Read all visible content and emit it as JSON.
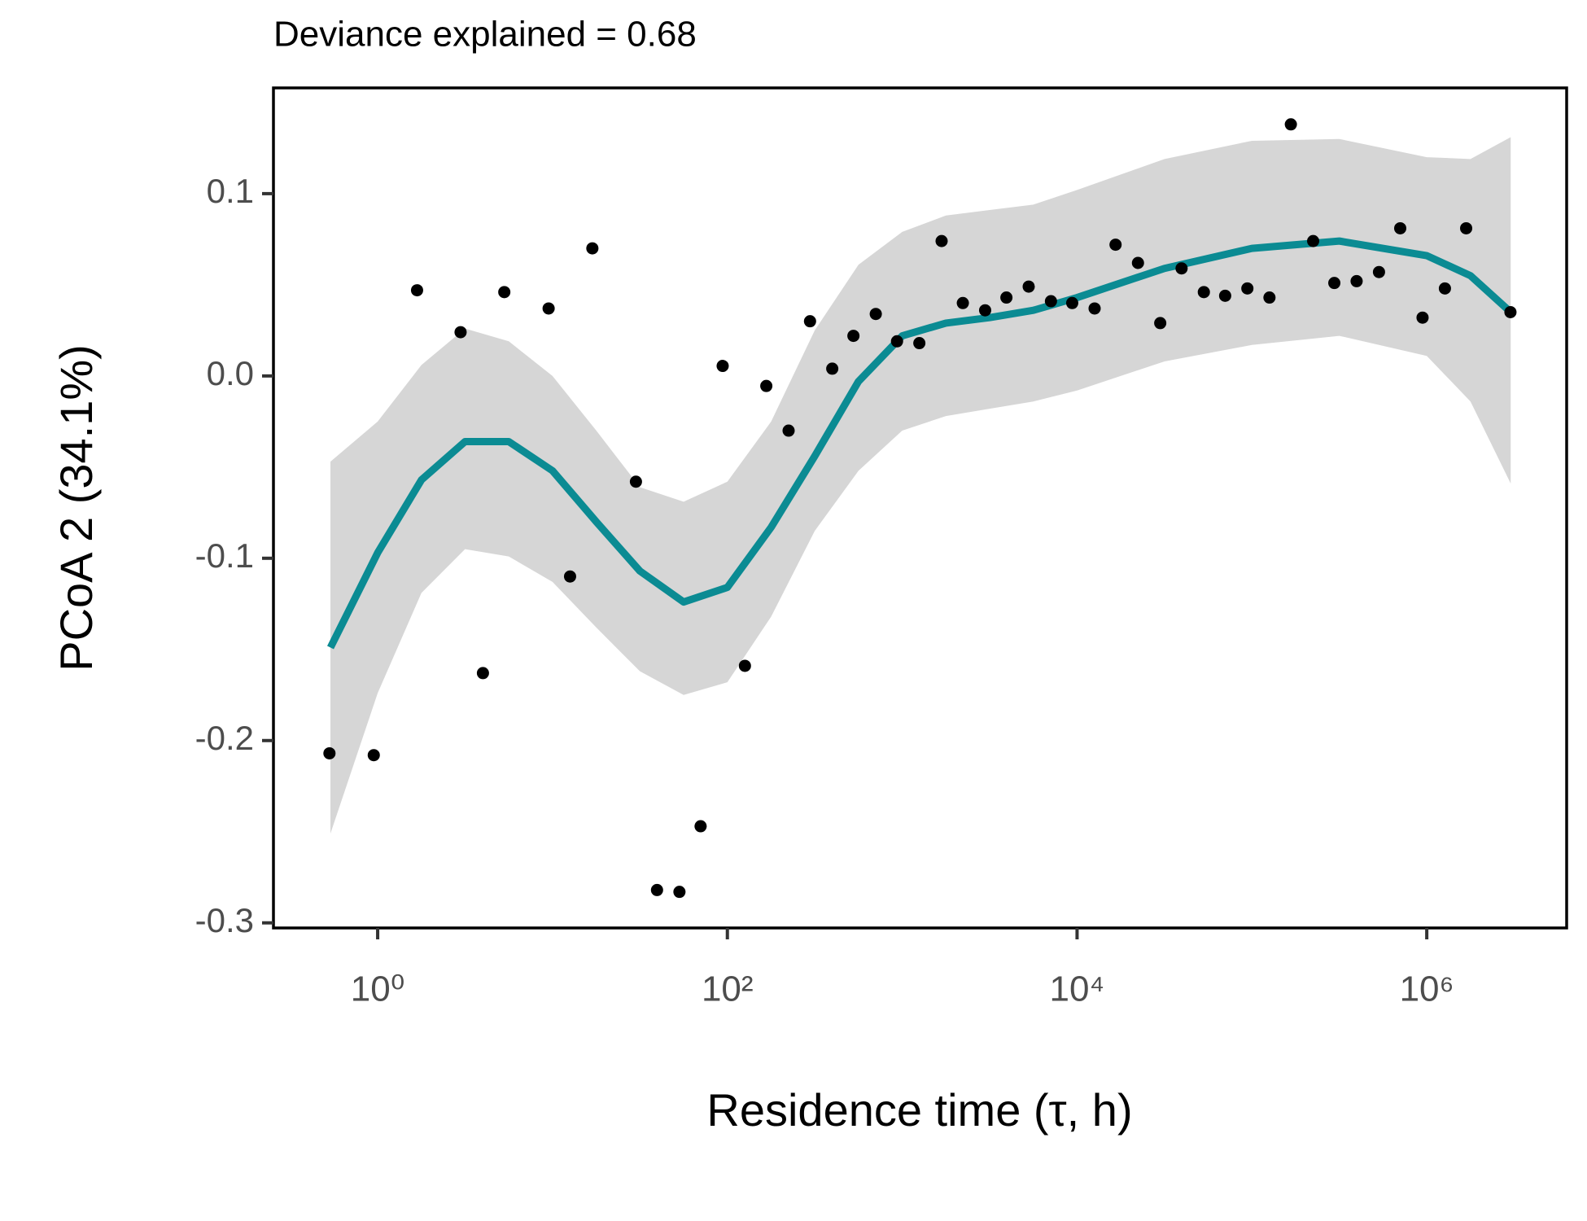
{
  "chart_data": {
    "type": "scatter",
    "title": "Deviance explained = 0.68",
    "x_label": "Residence time (τ, h)",
    "y_label": "PCoA 2 (34.1%)",
    "log_x": true,
    "grid": false,
    "point_color": "#000000",
    "line_color": "#0b8b93",
    "band_color": "#d6d6d6",
    "xlim": [
      0.2535,
      6310000
    ],
    "ylim": [
      -0.3028,
      0.158
    ],
    "xticks": [
      {
        "value": 1,
        "label": "10⁰"
      },
      {
        "value": 100,
        "label": "10²"
      },
      {
        "value": 10000,
        "label": "10⁴"
      },
      {
        "value": 1000000,
        "label": "10⁶"
      }
    ],
    "yticks": [
      0.1,
      {
        "value": 0,
        "label": "0.0"
      },
      -0.1,
      -0.2,
      -0.3
    ],
    "x": [
      0.53,
      0.95,
      1.68,
      2.98,
      4.0,
      5.3,
      9.5,
      12.6,
      16.9,
      30,
      39.6,
      53.2,
      70.3,
      94,
      126,
      167,
      224,
      297,
      398,
      526,
      706,
      934,
      1253,
      1680,
      2222,
      2980,
      3944,
      5290,
      7090,
      9380,
      12600,
      16600,
      22300,
      29900,
      39600,
      53100,
      70300,
      94200,
      126000,
      167000,
      224000,
      296000,
      397000,
      533000,
      705000,
      946000,
      1270000,
      1680000,
      3010000
    ],
    "values": [
      -0.207,
      -0.208,
      0.047,
      0.024,
      -0.163,
      0.046,
      0.037,
      -0.11,
      0.07,
      -0.058,
      -0.282,
      -0.283,
      -0.247,
      0.0055,
      -0.159,
      -0.0055,
      -0.03,
      0.03,
      0.004,
      0.022,
      0.034,
      0.019,
      0.018,
      0.074,
      0.04,
      0.036,
      0.043,
      0.049,
      0.041,
      0.04,
      0.037,
      0.072,
      0.062,
      0.029,
      0.059,
      0.046,
      0.044,
      0.048,
      0.043,
      0.138,
      0.074,
      0.051,
      0.052,
      0.057,
      0.081,
      0.032,
      0.048,
      0.081,
      0.035
    ],
    "fit": {
      "x": [
        0.537,
        1,
        1.78,
        3.16,
        5.62,
        10,
        17.8,
        31.6,
        56.2,
        100,
        178,
        316,
        562,
        1000,
        1778,
        3162,
        5623,
        10000,
        31623,
        100000,
        316228,
        1000000,
        1778279,
        3019952
      ],
      "values": [
        -0.149,
        -0.097,
        -0.057,
        -0.036,
        -0.036,
        -0.052,
        -0.08,
        -0.107,
        -0.124,
        -0.116,
        -0.083,
        -0.044,
        -0.003,
        0.022,
        0.029,
        0.032,
        0.036,
        0.043,
        0.059,
        0.07,
        0.074,
        0.066,
        0.055,
        0.035
      ],
      "upper": [
        -0.047,
        -0.025,
        0.006,
        0.026,
        0.019,
        0.0,
        -0.03,
        -0.061,
        -0.069,
        -0.058,
        -0.025,
        0.025,
        0.061,
        0.079,
        0.088,
        0.091,
        0.094,
        0.102,
        0.119,
        0.129,
        0.13,
        0.12,
        0.119,
        0.131
      ],
      "lower": [
        -0.251,
        -0.174,
        -0.119,
        -0.095,
        -0.099,
        -0.113,
        -0.138,
        -0.162,
        -0.175,
        -0.168,
        -0.132,
        -0.085,
        -0.052,
        -0.03,
        -0.022,
        -0.018,
        -0.014,
        -0.008,
        0.008,
        0.017,
        0.022,
        0.011,
        -0.014,
        -0.059
      ]
    }
  }
}
